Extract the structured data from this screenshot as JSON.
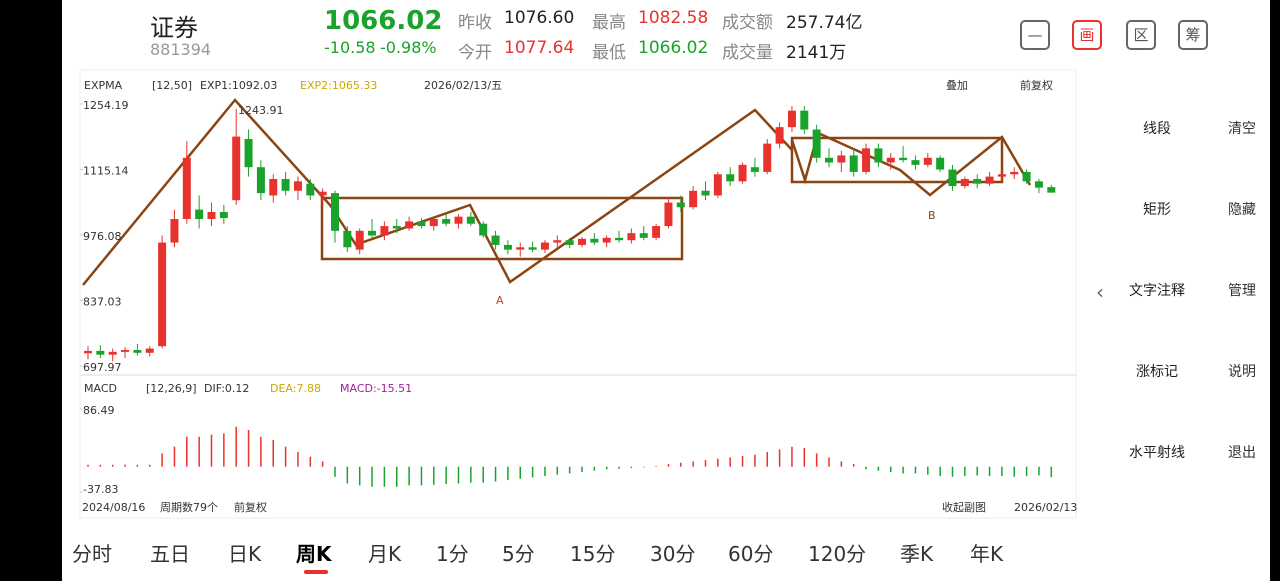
{
  "header": {
    "name": "证券",
    "code": "881394",
    "price": "1066.02",
    "change": "-10.58",
    "change_pct": "-0.98%",
    "stats": [
      {
        "label": "昨收",
        "value": "1076.60"
      },
      {
        "label": "最高",
        "value": "1082.58"
      },
      {
        "label": "成交额",
        "value": "257.74亿"
      },
      {
        "label": "今开",
        "value": "1077.64"
      },
      {
        "label": "最低",
        "value": "1066.02"
      },
      {
        "label": "成交量",
        "value": "2141万"
      }
    ],
    "buttons": [
      "画",
      "区",
      "筹"
    ]
  },
  "chart_data": {
    "type": "candlestick",
    "indicator": "EXPMA",
    "params": "[12,50]",
    "exp1": "EXP1:1092.03",
    "exp2": "EXP2:1065.33",
    "date": "2026/02/13/五",
    "overlay": "叠加",
    "adjust": "前复权",
    "ylim": [
      697.97,
      1254.19
    ],
    "yticks": [
      1254.19,
      1115.14,
      976.08,
      837.03,
      697.97
    ],
    "grid": false,
    "up_color": "#e8322d",
    "down_color": "#1aa32a",
    "annotations": [
      "1243.91",
      "A",
      "B"
    ],
    "candles": [
      [
        725,
        740,
        712,
        730
      ],
      [
        730,
        742,
        715,
        722
      ],
      [
        722,
        735,
        708,
        728
      ],
      [
        728,
        738,
        715,
        732
      ],
      [
        732,
        745,
        720,
        726
      ],
      [
        726,
        740,
        718,
        735
      ],
      [
        740,
        975,
        735,
        960
      ],
      [
        960,
        1030,
        950,
        1010
      ],
      [
        1010,
        1175,
        1000,
        1140
      ],
      [
        1030,
        1060,
        990,
        1010
      ],
      [
        1010,
        1045,
        995,
        1025
      ],
      [
        1025,
        1040,
        1000,
        1012
      ],
      [
        1050,
        1243.91,
        1040,
        1185
      ],
      [
        1180,
        1200,
        1100,
        1120
      ],
      [
        1120,
        1135,
        1050,
        1065
      ],
      [
        1060,
        1105,
        1045,
        1095
      ],
      [
        1095,
        1110,
        1060,
        1070
      ],
      [
        1070,
        1100,
        1050,
        1090
      ],
      [
        1085,
        1095,
        1050,
        1060
      ],
      [
        1060,
        1075,
        1040,
        1068
      ],
      [
        1065,
        1070,
        960,
        985
      ],
      [
        985,
        995,
        940,
        950
      ],
      [
        945,
        990,
        935,
        985
      ],
      [
        985,
        1010,
        970,
        975
      ],
      [
        975,
        1005,
        965,
        995
      ],
      [
        995,
        1010,
        980,
        990
      ],
      [
        990,
        1015,
        985,
        1005
      ],
      [
        1005,
        1012,
        990,
        995
      ],
      [
        995,
        1015,
        985,
        1010
      ],
      [
        1010,
        1020,
        995,
        1000
      ],
      [
        1000,
        1020,
        990,
        1015
      ],
      [
        1015,
        1025,
        995,
        1000
      ],
      [
        1000,
        1005,
        970,
        975
      ],
      [
        975,
        985,
        945,
        955
      ],
      [
        955,
        965,
        935,
        945
      ],
      [
        945,
        960,
        930,
        950
      ],
      [
        950,
        962,
        940,
        945
      ],
      [
        945,
        965,
        938,
        960
      ],
      [
        960,
        975,
        950,
        965
      ],
      [
        965,
        970,
        948,
        955
      ],
      [
        955,
        972,
        950,
        968
      ],
      [
        968,
        980,
        955,
        960
      ],
      [
        960,
        975,
        950,
        970
      ],
      [
        970,
        985,
        960,
        965
      ],
      [
        965,
        990,
        958,
        980
      ],
      [
        980,
        995,
        965,
        970
      ],
      [
        970,
        1000,
        965,
        995
      ],
      [
        995,
        1055,
        990,
        1045
      ],
      [
        1045,
        1060,
        1025,
        1035
      ],
      [
        1035,
        1080,
        1030,
        1070
      ],
      [
        1070,
        1090,
        1050,
        1060
      ],
      [
        1060,
        1110,
        1055,
        1105
      ],
      [
        1105,
        1120,
        1080,
        1090
      ],
      [
        1090,
        1130,
        1085,
        1125
      ],
      [
        1120,
        1140,
        1100,
        1110
      ],
      [
        1110,
        1180,
        1105,
        1170
      ],
      [
        1170,
        1215,
        1160,
        1205
      ],
      [
        1205,
        1250,
        1195,
        1240
      ],
      [
        1240,
        1250,
        1190,
        1200
      ],
      [
        1200,
        1210,
        1130,
        1140
      ],
      [
        1140,
        1160,
        1120,
        1130
      ],
      [
        1130,
        1155,
        1110,
        1145
      ],
      [
        1145,
        1160,
        1100,
        1110
      ],
      [
        1110,
        1170,
        1105,
        1160
      ],
      [
        1160,
        1170,
        1120,
        1130
      ],
      [
        1130,
        1150,
        1115,
        1140
      ],
      [
        1140,
        1165,
        1130,
        1135
      ],
      [
        1135,
        1145,
        1115,
        1125
      ],
      [
        1125,
        1150,
        1120,
        1140
      ],
      [
        1140,
        1145,
        1110,
        1115
      ],
      [
        1115,
        1125,
        1070,
        1080
      ],
      [
        1080,
        1100,
        1075,
        1095
      ],
      [
        1095,
        1105,
        1075,
        1085
      ],
      [
        1085,
        1110,
        1080,
        1100
      ],
      [
        1100,
        1115,
        1090,
        1105
      ],
      [
        1105,
        1120,
        1095,
        1110
      ],
      [
        1110,
        1115,
        1085,
        1090
      ],
      [
        1090,
        1095,
        1065,
        1076.6
      ],
      [
        1077.64,
        1082.58,
        1066.02,
        1066.02
      ]
    ],
    "macd": {
      "name": "MACD",
      "params": "[12,26,9]",
      "dif": "DIF:0.12",
      "dea": "DEA:7.88",
      "macd": "MACD:-15.51",
      "ylim": [
        -37.83,
        86.49
      ],
      "yticks": [
        86.49,
        -37.83
      ],
      "values": [
        3,
        3,
        3,
        3,
        3,
        3,
        20,
        30,
        45,
        45,
        48,
        50,
        60,
        55,
        45,
        40,
        30,
        22,
        15,
        8,
        -15,
        -25,
        -28,
        -30,
        -30,
        -30,
        -28,
        -28,
        -27,
        -26,
        -25,
        -24,
        -24,
        -22,
        -20,
        -18,
        -16,
        -14,
        -12,
        -10,
        -8,
        -6,
        -4,
        -3,
        -2,
        -1,
        1,
        4,
        6,
        8,
        10,
        12,
        14,
        16,
        18,
        22,
        26,
        30,
        28,
        20,
        14,
        8,
        4,
        -4,
        -6,
        -8,
        -10,
        -10,
        -12,
        -14,
        -15,
        -14,
        -13,
        -14,
        -14,
        -15,
        -14,
        -13,
        -15.51
      ]
    },
    "footer": {
      "start": "2024/08/16",
      "count": "周期数79个",
      "adjust": "前复权",
      "collapse": "收起副图",
      "end": "2026/02/13"
    }
  },
  "tabs": [
    "分时",
    "五日",
    "日K",
    "周K",
    "月K",
    "1分",
    "5分",
    "15分",
    "30分",
    "60分",
    "120分",
    "季K",
    "年K"
  ],
  "tools": [
    "线段",
    "矩形",
    "文字注释",
    "涨标记",
    "水平射线"
  ],
  "side": [
    "清空",
    "隐藏",
    "管理",
    "说明",
    "退出"
  ]
}
